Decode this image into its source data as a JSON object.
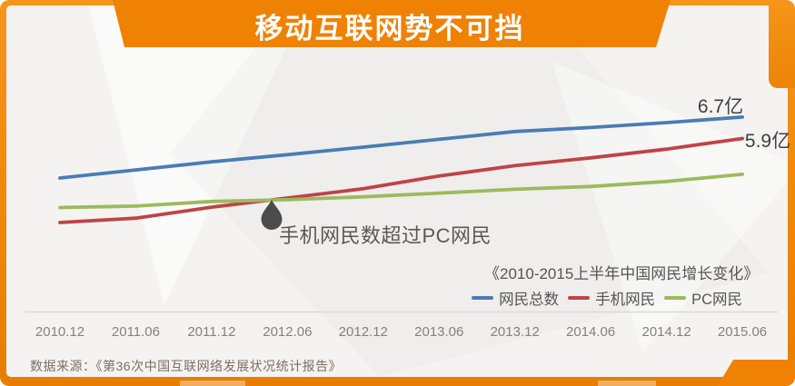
{
  "page": {
    "background": "#f4f3f1",
    "accent_orange": "#ef8103"
  },
  "banner": {
    "title": "移动互联网势不可挡",
    "text_color": "#ffffff"
  },
  "chart_data": {
    "type": "line",
    "title": "《2010-2015上半年中国网民增长变化》",
    "unit": "亿",
    "categories": [
      "2010.12",
      "2011.06",
      "2011.12",
      "2012.06",
      "2012.12",
      "2013.06",
      "2013.12",
      "2014.06",
      "2014.12",
      "2015.06"
    ],
    "series": [
      {
        "key": "total",
        "name": "网民总数",
        "color": "#4a7cb5",
        "values": [
          4.57,
          4.85,
          5.13,
          5.38,
          5.64,
          5.91,
          6.18,
          6.32,
          6.49,
          6.68
        ]
      },
      {
        "key": "mobile",
        "name": "手机网民",
        "color": "#bf4348",
        "values": [
          3.03,
          3.18,
          3.56,
          3.88,
          4.2,
          4.64,
          5.0,
          5.27,
          5.57,
          5.94
        ]
      },
      {
        "key": "pc",
        "name": "PC网民",
        "color": "#9dba5c",
        "values": [
          3.55,
          3.6,
          3.76,
          3.82,
          3.92,
          4.05,
          4.18,
          4.28,
          4.45,
          4.7
        ]
      }
    ],
    "end_labels": {
      "total": "6.7亿",
      "mobile": "5.9亿"
    },
    "annotation": {
      "text": "手机网民数超过PC网民",
      "at_category": "2012.06",
      "marker": "drop-icon"
    },
    "legend_position": "bottom-right",
    "grid": false,
    "ylim": [
      2.9,
      7.0
    ]
  },
  "footer": {
    "source": "数据来源：《第36次中国互联网络发展状况统计报告》"
  }
}
